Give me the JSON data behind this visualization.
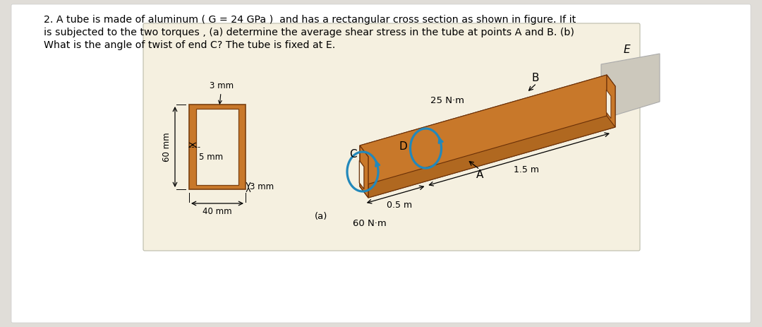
{
  "bg_color_page": "#e0ddd8",
  "bg_color_white": "#ffffff",
  "fig_box_color": "#f5f0e0",
  "tube_main": "#c8782a",
  "tube_top": "#d4893a",
  "tube_bottom": "#9a5515",
  "tube_face": "#b06020",
  "tube_inner": "#f0ead8",
  "wall_color": "#ccc8bc",
  "torque_color": "#2288bb",
  "text_color": "#000000",
  "line1": "2. A tube is made of aluminum ( G = 24 GPa )  and has a rectangular cross section as shown in figure. If it",
  "line2": "is subjected to the two torques , (a) determine the average shear stress in the tube at points A and B. (b)",
  "line3": "What is the angle of twist of end C? The tube is fixed at E.",
  "label_3mm_top": "3 mm",
  "label_5mm": "5 mm",
  "label_3mm_bot": "3 mm",
  "label_60mm": "60 mm",
  "label_40mm": "40 mm",
  "label_25Nm": "25 N·m",
  "label_60Nm": "60 N·m",
  "label_15m": "1.5 m",
  "label_05m": "0.5 m",
  "label_a": "(a)"
}
